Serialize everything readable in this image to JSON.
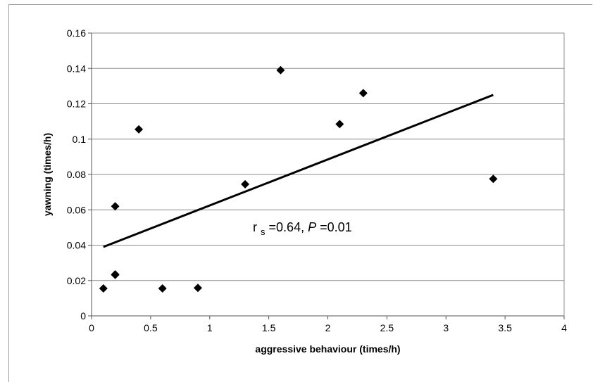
{
  "chart_data": {
    "type": "scatter",
    "xlabel": "aggressive behaviour (times/h)",
    "ylabel": "yawning (times/h)",
    "xlim": [
      0,
      4
    ],
    "ylim": [
      0,
      0.16
    ],
    "x_ticks": [
      "0",
      "0.5",
      "1",
      "1.5",
      "2",
      "2.5",
      "3",
      "3.5",
      "4"
    ],
    "y_ticks": [
      "0",
      "0.02",
      "0.04",
      "0.06",
      "0.08",
      "0.1",
      "0.12",
      "0.14",
      "0.16"
    ],
    "grid": "horizontal",
    "marker": "diamond",
    "points": [
      {
        "x": 0.1,
        "y": 0.0155
      },
      {
        "x": 0.2,
        "y": 0.0235
      },
      {
        "x": 0.2,
        "y": 0.0232
      },
      {
        "x": 0.2,
        "y": 0.062
      },
      {
        "x": 0.4,
        "y": 0.1055
      },
      {
        "x": 0.6,
        "y": 0.0155
      },
      {
        "x": 0.9,
        "y": 0.0158
      },
      {
        "x": 1.3,
        "y": 0.0745
      },
      {
        "x": 1.6,
        "y": 0.139
      },
      {
        "x": 2.1,
        "y": 0.1085
      },
      {
        "x": 2.3,
        "y": 0.126
      },
      {
        "x": 3.4,
        "y": 0.0775
      }
    ],
    "trendline": {
      "x": [
        0.1,
        3.4
      ],
      "y": [
        0.039,
        0.125
      ]
    },
    "annotation": {
      "rs_symbol": "r",
      "rs_sub": "s",
      "rs_value": "=0.64, ",
      "p_symbol": "P",
      "p_value": "=0.01"
    },
    "colors": {
      "marker": "#000000",
      "line": "#000000",
      "grid": "#8c8c8c"
    }
  }
}
